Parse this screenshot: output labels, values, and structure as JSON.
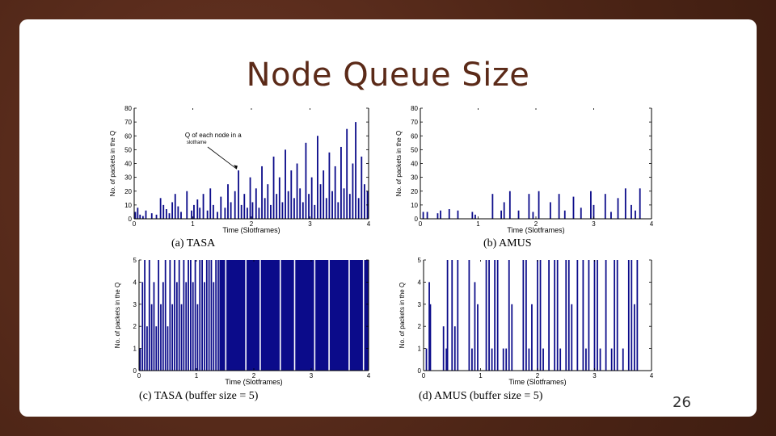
{
  "slide": {
    "title": "Node Queue Size",
    "page_number": "26"
  },
  "colors": {
    "bar": "#0b0b8a",
    "background": "#55291b",
    "title": "#5b2a18"
  },
  "chart_data": [
    {
      "id": "a",
      "type": "bar",
      "caption": "(a)  TASA",
      "xlabel": "Time (Slotframes)",
      "ylabel": "No. of packets in the Q",
      "xlim": [
        0,
        4
      ],
      "ylim": [
        0,
        80
      ],
      "xticks": [
        "0",
        "1",
        "2",
        "3",
        "4"
      ],
      "yticks": [
        "0",
        "10",
        "20",
        "30",
        "40",
        "50",
        "60",
        "70",
        "80"
      ],
      "annotation": {
        "text": "Q of each node in a",
        "subtext": "slotframe",
        "x": 1.75,
        "y": 36
      },
      "x": [
        0.02,
        0.06,
        0.1,
        0.15,
        0.2,
        0.3,
        0.38,
        0.45,
        0.5,
        0.55,
        0.6,
        0.65,
        0.7,
        0.75,
        0.8,
        0.9,
        0.98,
        1.02,
        1.08,
        1.12,
        1.18,
        1.25,
        1.3,
        1.35,
        1.42,
        1.48,
        1.55,
        1.6,
        1.65,
        1.72,
        1.78,
        1.83,
        1.88,
        1.93,
        1.98,
        2.02,
        2.08,
        2.13,
        2.18,
        2.23,
        2.28,
        2.33,
        2.38,
        2.43,
        2.48,
        2.53,
        2.58,
        2.63,
        2.68,
        2.73,
        2.78,
        2.83,
        2.88,
        2.93,
        2.98,
        3.03,
        3.08,
        3.13,
        3.18,
        3.23,
        3.28,
        3.33,
        3.38,
        3.43,
        3.48,
        3.53,
        3.58,
        3.63,
        3.68,
        3.73,
        3.78,
        3.83,
        3.88,
        3.93,
        3.98
      ],
      "values": [
        5,
        8,
        3,
        2,
        6,
        4,
        3,
        15,
        10,
        7,
        4,
        12,
        18,
        9,
        5,
        20,
        6,
        10,
        14,
        8,
        18,
        6,
        22,
        10,
        5,
        16,
        8,
        25,
        12,
        20,
        35,
        10,
        18,
        8,
        30,
        12,
        22,
        8,
        38,
        15,
        25,
        10,
        45,
        18,
        30,
        12,
        50,
        20,
        35,
        15,
        40,
        22,
        12,
        55,
        18,
        30,
        10,
        60,
        25,
        35,
        15,
        48,
        20,
        38,
        12,
        52,
        22,
        65,
        18,
        40,
        70,
        15,
        45,
        25,
        20
      ]
    },
    {
      "id": "b",
      "type": "bar",
      "caption": "(b)  AMUS",
      "xlabel": "Time (Slotframes)",
      "ylabel": "No. of packets in the Q",
      "xlim": [
        0,
        4
      ],
      "ylim": [
        0,
        80
      ],
      "xticks": [
        "0",
        "1",
        "2",
        "3",
        "4"
      ],
      "yticks": [
        "0",
        "10",
        "20",
        "30",
        "40",
        "50",
        "60",
        "70",
        "80"
      ],
      "x": [
        0.05,
        0.12,
        0.3,
        0.35,
        0.5,
        0.65,
        0.9,
        0.95,
        1.25,
        1.4,
        1.45,
        1.55,
        1.7,
        1.88,
        1.95,
        2.05,
        2.25,
        2.4,
        2.5,
        2.65,
        2.78,
        2.95,
        3.0,
        3.2,
        3.3,
        3.42,
        3.55,
        3.65,
        3.72,
        3.8
      ],
      "values": [
        5,
        5,
        4,
        6,
        7,
        6,
        5,
        3,
        18,
        6,
        12,
        20,
        6,
        18,
        5,
        20,
        12,
        18,
        6,
        16,
        8,
        20,
        10,
        18,
        5,
        15,
        22,
        10,
        6,
        22
      ]
    },
    {
      "id": "c",
      "type": "bar",
      "caption": "(c)  TASA  (buffer  size  =  5)",
      "xlabel": "Time (Slotframes)",
      "ylabel": "No. of packets in the Q",
      "xlim": [
        0,
        4
      ],
      "ylim": [
        0,
        5
      ],
      "xticks": [
        "0",
        "1",
        "2",
        "3",
        "4"
      ],
      "yticks": [
        "0",
        "1",
        "2",
        "3",
        "4",
        "5"
      ],
      "x": [
        0.02,
        0.06,
        0.1,
        0.14,
        0.18,
        0.22,
        0.26,
        0.3,
        0.34,
        0.38,
        0.42,
        0.46,
        0.5,
        0.54,
        0.58,
        0.62,
        0.66,
        0.7,
        0.74,
        0.78,
        0.82,
        0.86,
        0.9,
        0.94,
        0.98,
        1.02,
        1.06,
        1.1,
        1.14,
        1.18,
        1.22,
        1.26,
        1.3,
        1.34,
        1.38
      ],
      "values": [
        1,
        4,
        5,
        2,
        5,
        3,
        4,
        2,
        5,
        3,
        4,
        5,
        2,
        5,
        3,
        5,
        4,
        5,
        3,
        5,
        4,
        5,
        5,
        4,
        5,
        3,
        5,
        5,
        4,
        5,
        5,
        5,
        4,
        5,
        5
      ],
      "fill_from_x": 1.4,
      "fill_value": 5,
      "gaps_x": [
        1.5,
        1.85,
        2.1,
        2.45,
        2.7,
        3.05,
        3.3,
        3.65,
        3.9
      ]
    },
    {
      "id": "d",
      "type": "bar",
      "caption": "(d)  AMUS  (buffer  size  =  5)",
      "xlabel": "Time (Slotframes)",
      "ylabel": "No. of packets in the Q",
      "xlim": [
        0,
        4
      ],
      "ylim": [
        0,
        5
      ],
      "xticks": [
        "0",
        "1",
        "2",
        "3",
        "4"
      ],
      "yticks": [
        "0",
        "1",
        "2",
        "3",
        "4",
        "5"
      ],
      "x": [
        0.05,
        0.1,
        0.12,
        0.35,
        0.4,
        0.42,
        0.5,
        0.55,
        0.6,
        0.8,
        0.85,
        0.9,
        0.95,
        1.1,
        1.15,
        1.2,
        1.25,
        1.3,
        1.4,
        1.45,
        1.5,
        1.55,
        1.75,
        1.8,
        1.85,
        1.9,
        2.0,
        2.05,
        2.1,
        2.2,
        2.3,
        2.35,
        2.4,
        2.5,
        2.55,
        2.6,
        2.7,
        2.8,
        2.85,
        2.9,
        3.0,
        3.05,
        3.1,
        3.2,
        3.3,
        3.35,
        3.4,
        3.5,
        3.6,
        3.65,
        3.7,
        3.75
      ],
      "values": [
        1,
        4,
        3,
        2,
        1,
        5,
        5,
        2,
        5,
        5,
        1,
        4,
        3,
        5,
        5,
        1,
        5,
        5,
        1,
        1,
        5,
        3,
        5,
        5,
        1,
        3,
        5,
        5,
        1,
        5,
        5,
        5,
        1,
        5,
        5,
        3,
        5,
        5,
        1,
        5,
        5,
        5,
        1,
        5,
        1,
        5,
        5,
        1,
        5,
        5,
        3,
        5
      ]
    }
  ]
}
